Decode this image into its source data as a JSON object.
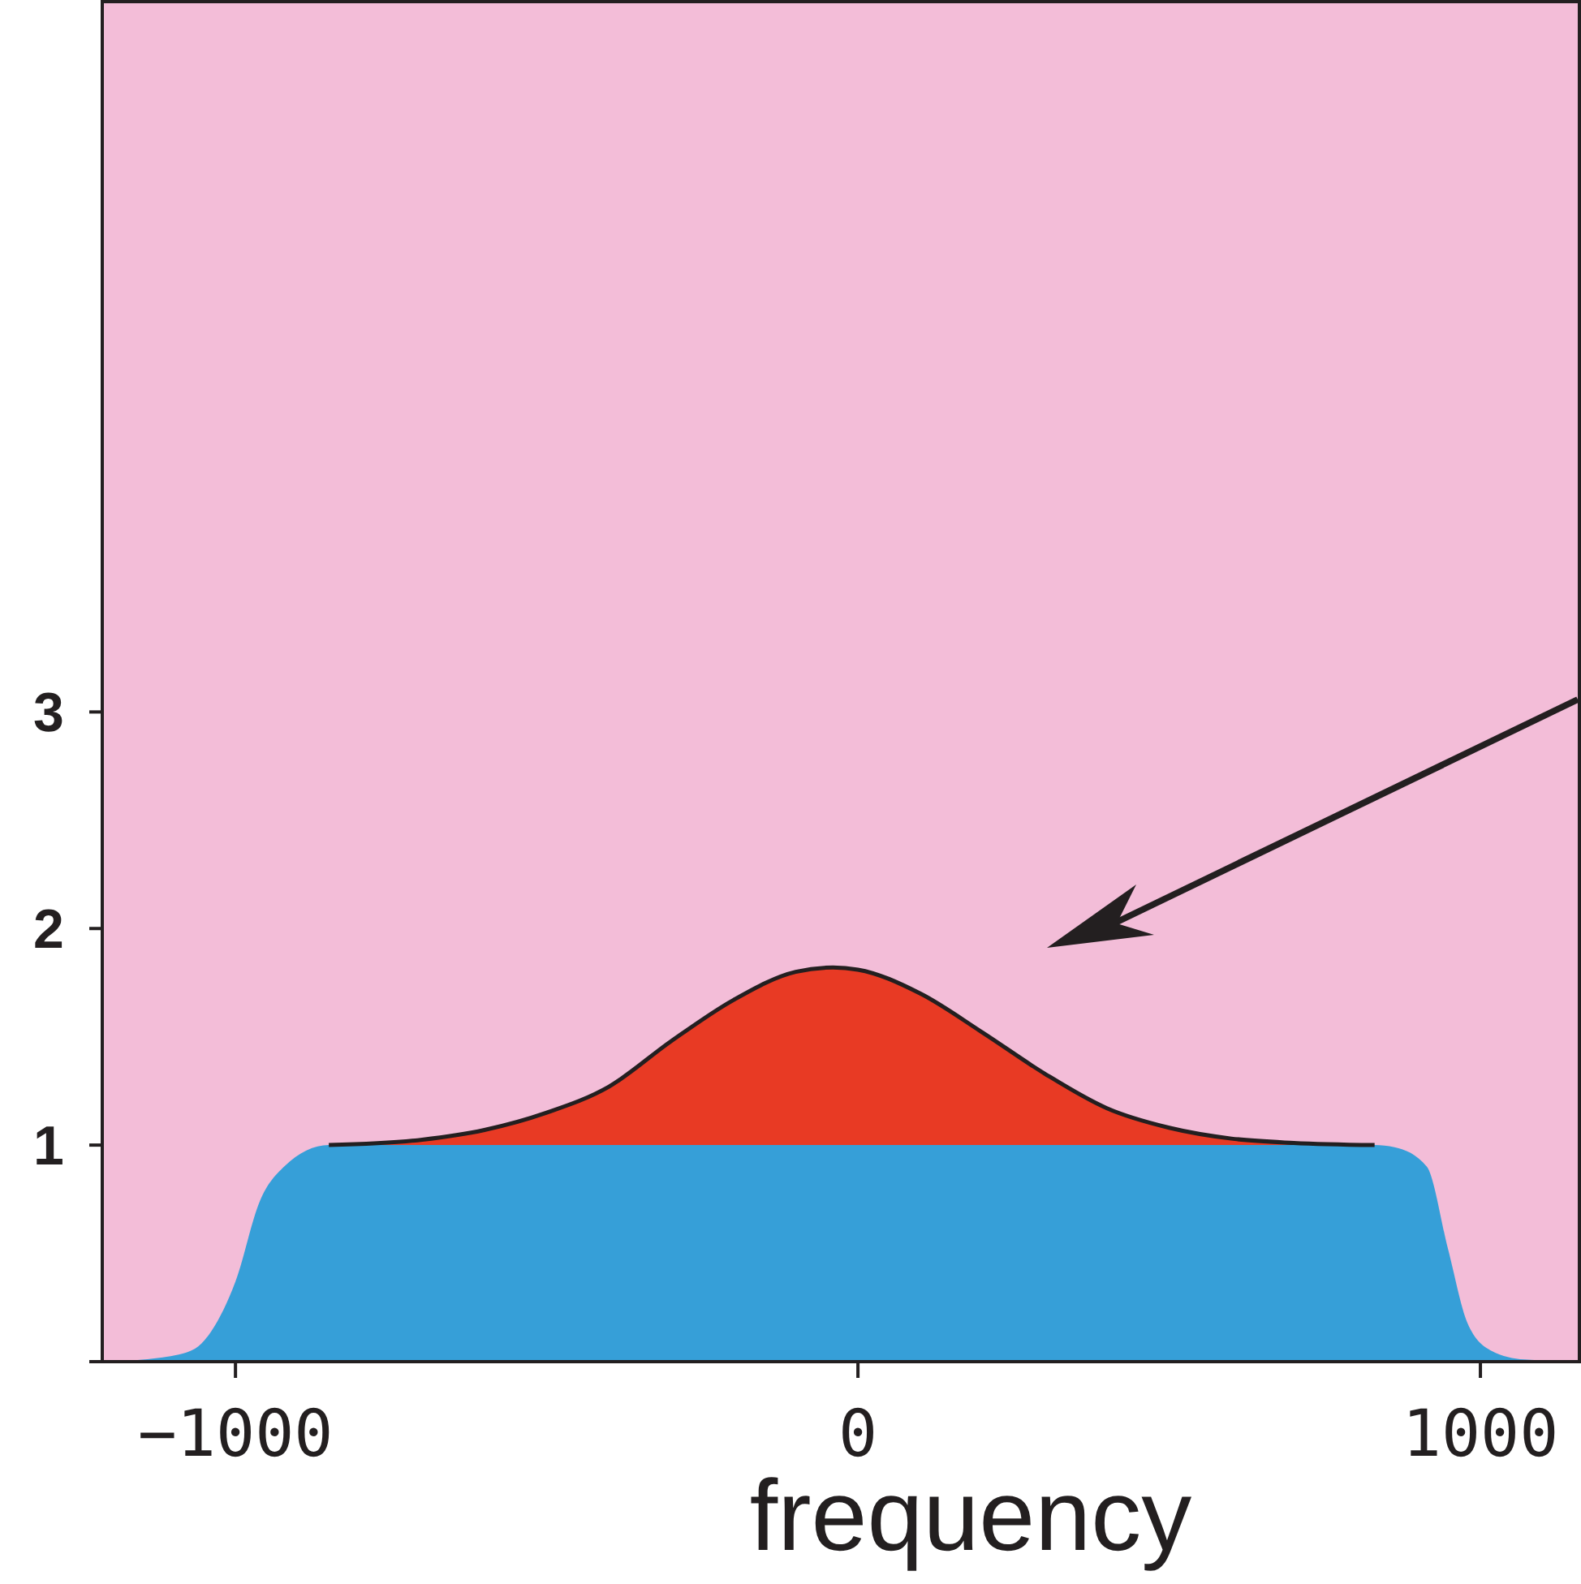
{
  "chart_data": {
    "type": "area",
    "stacked": true,
    "xlabel": "frequency",
    "xlim": [
      -1214,
      1159
    ],
    "ylim": [
      0,
      6.28
    ],
    "xticks": [
      {
        "value": -1000,
        "label": "−1000"
      },
      0,
      1000
    ],
    "yticks": [
      {
        "value": 0,
        "label": null
      },
      1,
      2,
      3
    ],
    "grid": false,
    "x": [
      -1214,
      -1117,
      -1065,
      -1039,
      -1000,
      -961,
      -922,
      -850,
      -700,
      -600,
      -500,
      -400,
      -300,
      -200,
      -100,
      -40,
      0,
      100,
      200,
      300,
      400,
      500,
      600,
      700,
      830,
      862,
      914,
      948,
      979,
      1018,
      1070,
      1159
    ],
    "series": [
      {
        "color": "#369fd8",
        "values": [
          0,
          0.02,
          0.06,
          0.14,
          0.37,
          0.74,
          0.9,
          1,
          1,
          1,
          1,
          1,
          1,
          1,
          1,
          1,
          1,
          1,
          1,
          1,
          1,
          1,
          1,
          1,
          1,
          0.99,
          0.9,
          0.52,
          0.18,
          0.05,
          0.01,
          0
        ]
      },
      {
        "color": "#e83a24",
        "values": [
          null,
          null,
          null,
          null,
          null,
          null,
          null,
          0,
          0.025,
          0.07,
          0.15,
          0.27,
          0.48,
          0.67,
          0.8,
          0.82,
          0.81,
          0.7,
          0.52,
          0.33,
          0.17,
          0.08,
          0.03,
          0.01,
          0,
          null,
          null,
          null,
          null,
          null,
          null,
          null
        ]
      }
    ]
  }
}
